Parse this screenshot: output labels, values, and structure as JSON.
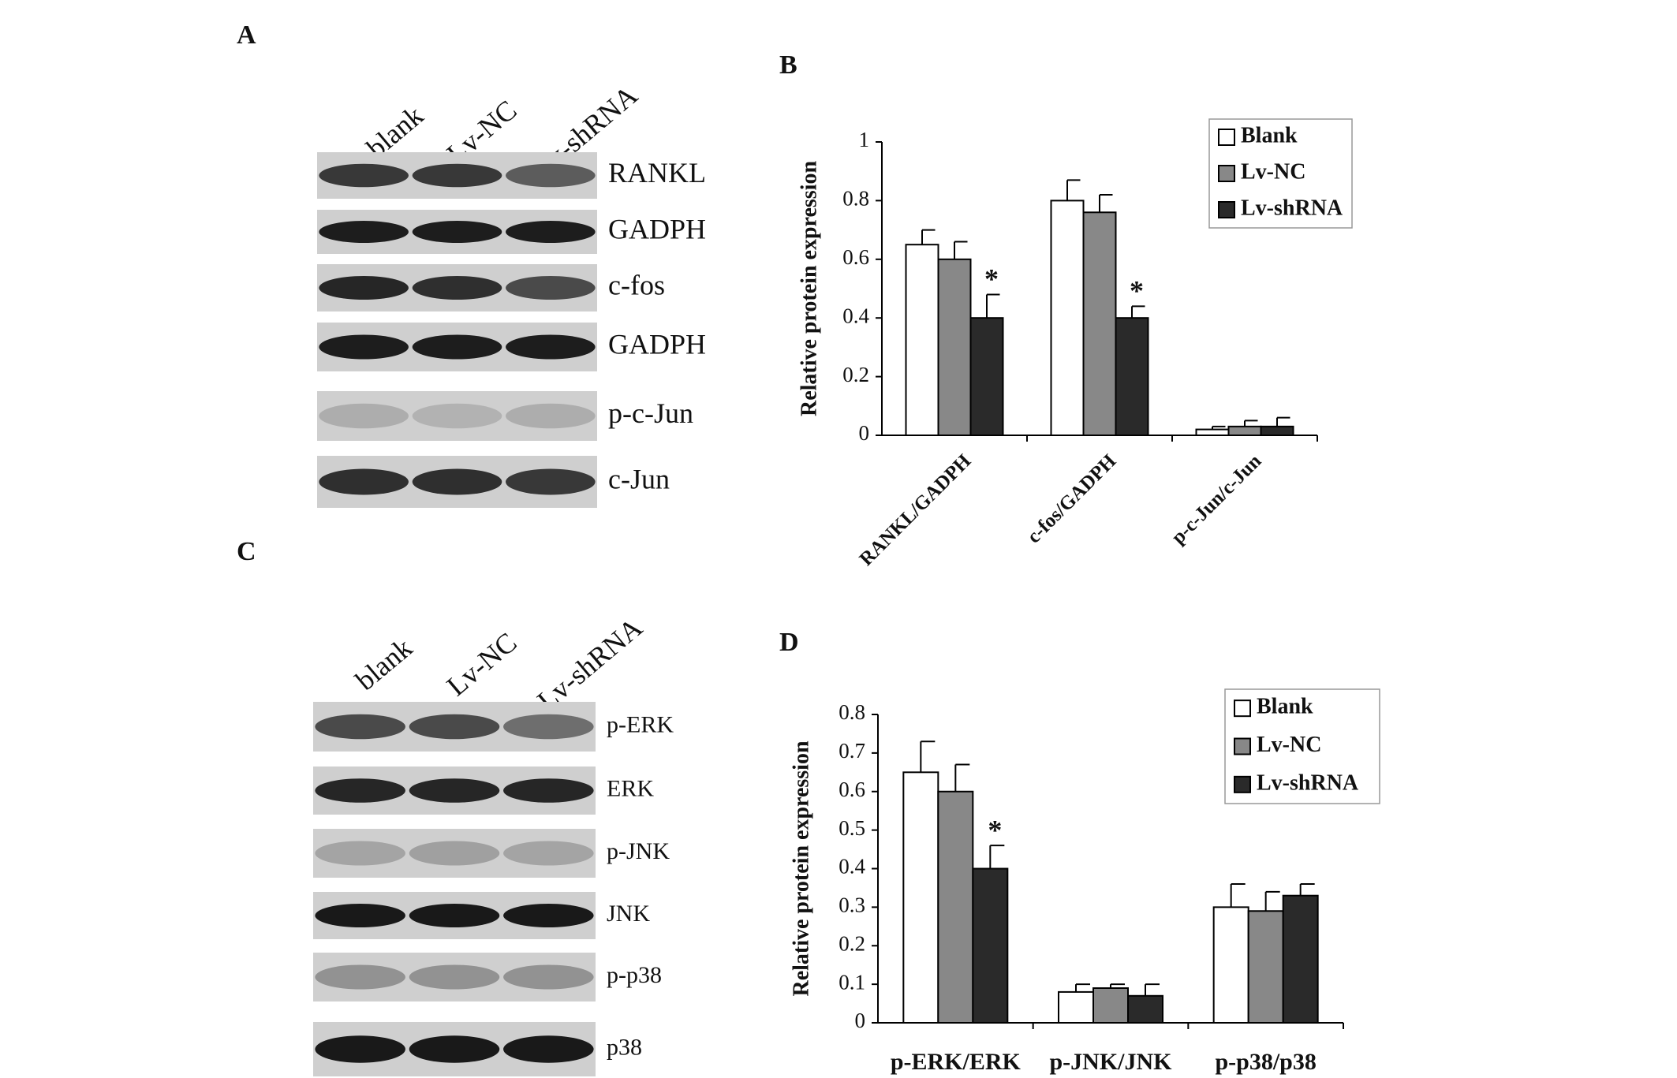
{
  "panel_labels": [
    "A",
    "B",
    "C",
    "D"
  ],
  "blots": [
    {
      "lanes": [
        "blank",
        "Lv-NC",
        "Lv-shRNA"
      ],
      "rows": [
        "RANKL",
        "GADPH",
        "c-fos",
        "GADPH",
        "p-c-Jun",
        "c-Jun"
      ]
    },
    {
      "lanes": [
        "blank",
        "Lv-NC",
        "Lv-shRNA"
      ],
      "rows": [
        "p-ERK",
        "ERK",
        "p-JNK",
        "JNK",
        "p-p38",
        "p38"
      ]
    }
  ],
  "chart_data": [
    {
      "type": "bar",
      "y_label": "Relative protein expression",
      "categories": [
        "RANKL/GADPH",
        "c-fos/GADPH",
        "p-c-Jun/c-Jun"
      ],
      "series": [
        {
          "name": "Blank",
          "color": "#ffffff",
          "values": [
            0.65,
            0.8,
            0.02
          ],
          "errors": [
            0.05,
            0.07,
            0.01
          ]
        },
        {
          "name": "Lv-NC",
          "color": "#888888",
          "values": [
            0.6,
            0.76,
            0.03
          ],
          "errors": [
            0.06,
            0.06,
            0.02
          ]
        },
        {
          "name": "Lv-shRNA",
          "color": "#2a2a2a",
          "values": [
            0.4,
            0.4,
            0.03
          ],
          "errors": [
            0.08,
            0.04,
            0.03
          ],
          "significance": [
            "*",
            "*",
            null
          ]
        }
      ],
      "ylim": [
        0,
        1
      ],
      "yticks": [
        0,
        0.2,
        0.4,
        0.6,
        0.8,
        1
      ],
      "legend": "top-right"
    },
    {
      "type": "bar",
      "y_label": "Relative protein expression",
      "categories": [
        "p-ERK/ERK",
        "p-JNK/JNK",
        "p-p38/p38"
      ],
      "series": [
        {
          "name": "Blank",
          "color": "#ffffff",
          "values": [
            0.65,
            0.08,
            0.3
          ],
          "errors": [
            0.08,
            0.02,
            0.06
          ]
        },
        {
          "name": "Lv-NC",
          "color": "#888888",
          "values": [
            0.6,
            0.09,
            0.29
          ],
          "errors": [
            0.07,
            0.01,
            0.05
          ]
        },
        {
          "name": "Lv-shRNA",
          "color": "#2a2a2a",
          "values": [
            0.4,
            0.07,
            0.33
          ],
          "errors": [
            0.06,
            0.03,
            0.03
          ],
          "significance": [
            "*",
            null,
            null
          ]
        }
      ],
      "ylim": [
        0,
        0.8
      ],
      "yticks": [
        0,
        0.1,
        0.2,
        0.3,
        0.4,
        0.5,
        0.6,
        0.7,
        0.8
      ],
      "legend": "top-right"
    }
  ]
}
